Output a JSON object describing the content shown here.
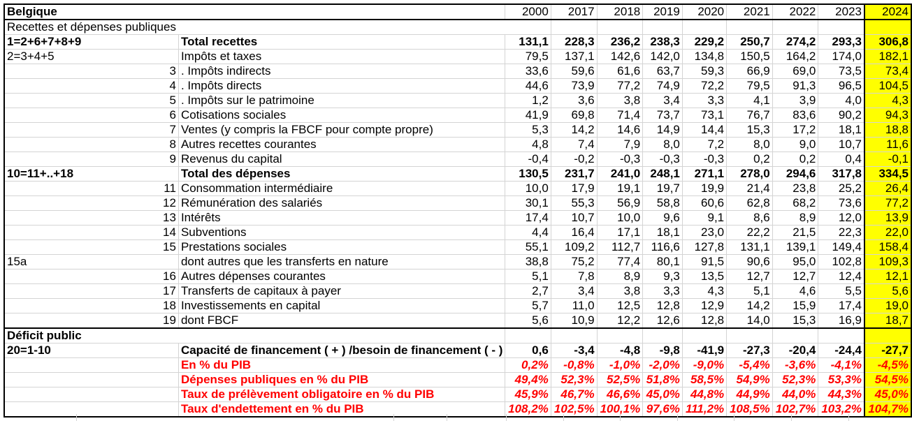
{
  "sheet": {
    "country": "Belgique",
    "subtitle": "Recettes et dépenses publiques",
    "years": [
      "2000",
      "2017",
      "2018",
      "2019",
      "2020",
      "2021",
      "2022",
      "2023",
      "2024"
    ],
    "highlight_color": "#ffff00",
    "negative_pct_color": "#ff0000",
    "rows": [
      {
        "code": "1=2+6+7+8+9",
        "code_align": "left",
        "label": "Total recettes",
        "style": "bold",
        "values": [
          "131,1",
          "228,3",
          "236,2",
          "238,3",
          "229,2",
          "250,7",
          "274,2",
          "293,3",
          "306,8"
        ]
      },
      {
        "code": "2=3+4+5",
        "code_align": "left",
        "label": "Impôts et taxes",
        "style": "",
        "values": [
          "79,5",
          "137,1",
          "142,6",
          "142,0",
          "134,8",
          "150,5",
          "164,2",
          "174,0",
          "182,1"
        ]
      },
      {
        "code": "3",
        "code_align": "right",
        "label": ". Impôts indirects",
        "style": "",
        "values": [
          "33,6",
          "59,6",
          "61,6",
          "63,7",
          "59,3",
          "66,9",
          "69,0",
          "73,5",
          "73,4"
        ]
      },
      {
        "code": "4",
        "code_align": "right",
        "label": ". Impôts directs",
        "style": "",
        "values": [
          "44,6",
          "73,9",
          "77,2",
          "74,9",
          "72,2",
          "79,5",
          "91,3",
          "96,5",
          "104,5"
        ]
      },
      {
        "code": "5",
        "code_align": "right",
        "label": ". Impôts sur le patrimoine",
        "style": "",
        "values": [
          "1,2",
          "3,6",
          "3,8",
          "3,4",
          "3,3",
          "4,1",
          "3,9",
          "4,0",
          "4,3"
        ]
      },
      {
        "code": "6",
        "code_align": "right",
        "label": "Cotisations sociales",
        "style": "",
        "values": [
          "41,9",
          "69,8",
          "71,4",
          "73,7",
          "73,1",
          "76,7",
          "83,6",
          "90,2",
          "94,3"
        ]
      },
      {
        "code": "7",
        "code_align": "right",
        "label": "Ventes (y compris la FBCF pour compte propre)",
        "style": "",
        "values": [
          "5,3",
          "14,2",
          "14,6",
          "14,9",
          "14,4",
          "15,3",
          "17,2",
          "18,1",
          "18,8"
        ]
      },
      {
        "code": "8",
        "code_align": "right",
        "label": "Autres recettes courantes",
        "style": "",
        "values": [
          "4,8",
          "7,4",
          "7,9",
          "8,0",
          "7,2",
          "8,0",
          "9,0",
          "10,7",
          "11,6"
        ]
      },
      {
        "code": "9",
        "code_align": "right",
        "label": "Revenus du capital",
        "style": "",
        "values": [
          "-0,4",
          "-0,2",
          "-0,3",
          "-0,3",
          "-0,3",
          "0,2",
          "0,2",
          "0,4",
          "-0,1"
        ]
      },
      {
        "code": "10=11+..+18",
        "code_align": "left",
        "label": "Total des dépenses",
        "style": "bold",
        "values": [
          "130,5",
          "231,7",
          "241,0",
          "248,1",
          "271,1",
          "278,0",
          "294,6",
          "317,8",
          "334,5"
        ]
      },
      {
        "code": "11",
        "code_align": "right",
        "label": "Consommation intermédiaire",
        "style": "",
        "values": [
          "10,0",
          "17,9",
          "19,1",
          "19,7",
          "19,9",
          "21,4",
          "23,8",
          "25,2",
          "26,4"
        ]
      },
      {
        "code": "12",
        "code_align": "right",
        "label": "Rémunération des salariés",
        "style": "",
        "values": [
          "30,1",
          "55,3",
          "56,9",
          "58,8",
          "60,6",
          "62,8",
          "68,2",
          "73,6",
          "77,2"
        ]
      },
      {
        "code": "13",
        "code_align": "right",
        "label": "Intérêts",
        "style": "",
        "values": [
          "17,4",
          "10,7",
          "10,0",
          "9,6",
          "9,1",
          "8,6",
          "8,9",
          "12,0",
          "13,9"
        ]
      },
      {
        "code": "14",
        "code_align": "right",
        "label": "Subventions",
        "style": "",
        "values": [
          "4,4",
          "16,4",
          "17,1",
          "18,1",
          "23,0",
          "22,2",
          "21,5",
          "22,3",
          "22,0"
        ]
      },
      {
        "code": "15",
        "code_align": "right",
        "label": "Prestations sociales",
        "style": "",
        "values": [
          "55,1",
          "109,2",
          "112,7",
          "116,6",
          "127,8",
          "131,1",
          "139,1",
          "149,4",
          "158,4"
        ]
      },
      {
        "code": "15a",
        "code_align": "left",
        "label": "dont autres que les transferts en nature",
        "style": "",
        "values": [
          "38,8",
          "75,2",
          "77,4",
          "80,1",
          "91,5",
          "90,6",
          "95,0",
          "102,8",
          "109,3"
        ]
      },
      {
        "code": "16",
        "code_align": "right",
        "label": "Autres dépenses courantes",
        "style": "",
        "values": [
          "5,1",
          "7,8",
          "8,9",
          "9,3",
          "13,5",
          "12,7",
          "12,7",
          "12,4",
          "12,1"
        ]
      },
      {
        "code": "17",
        "code_align": "right",
        "label": "Transferts de capitaux à payer",
        "style": "",
        "values": [
          "2,7",
          "3,4",
          "3,8",
          "3,3",
          "4,3",
          "5,1",
          "4,6",
          "5,5",
          "5,6"
        ]
      },
      {
        "code": "18",
        "code_align": "right",
        "label": "Investissements en capital",
        "style": "",
        "values": [
          "5,7",
          "11,0",
          "12,5",
          "12,8",
          "12,9",
          "14,2",
          "15,9",
          "17,4",
          "19,0"
        ]
      },
      {
        "code": "19",
        "code_align": "right",
        "label": "dont FBCF",
        "style": "sep",
        "values": [
          "5,6",
          "10,9",
          "12,2",
          "12,6",
          "12,8",
          "14,0",
          "15,3",
          "16,9",
          "18,7"
        ]
      }
    ],
    "deficit_title": "Déficit public",
    "deficit_rows": [
      {
        "code": "20=1-10",
        "label": "Capacité de financement ( + ) /besoin de financement ( - )",
        "style": "bold",
        "values": [
          "0,6",
          "-3,4",
          "-4,8",
          "-9,8",
          "-41,9",
          "-27,3",
          "-20,4",
          "-24,4",
          "-27,7"
        ]
      },
      {
        "code": "",
        "label": "En % du PIB",
        "style": "red",
        "values": [
          "0,2%",
          "-0,8%",
          "-1,0%",
          "-2,0%",
          "-9,0%",
          "-5,4%",
          "-3,6%",
          "-4,1%",
          "-4,5%"
        ]
      },
      {
        "code": "",
        "label": "Dépenses publiques en % du PIB",
        "style": "red",
        "values": [
          "49,4%",
          "52,3%",
          "52,5%",
          "51,8%",
          "58,5%",
          "54,9%",
          "52,3%",
          "53,3%",
          "54,5%"
        ]
      },
      {
        "code": "",
        "label": "Taux de prélèvement obligatoire en % du PIB",
        "style": "red",
        "values": [
          "45,9%",
          "46,7%",
          "46,6%",
          "45,0%",
          "44,8%",
          "44,9%",
          "44,0%",
          "44,3%",
          "45,0%"
        ]
      },
      {
        "code": "",
        "label": "Taux d'endettement en % du PIB",
        "style": "red last",
        "values": [
          "108,2%",
          "102,5%",
          "100,1%",
          "97,6%",
          "111,2%",
          "108,5%",
          "102,7%",
          "103,2%",
          "104,7%"
        ]
      }
    ]
  }
}
